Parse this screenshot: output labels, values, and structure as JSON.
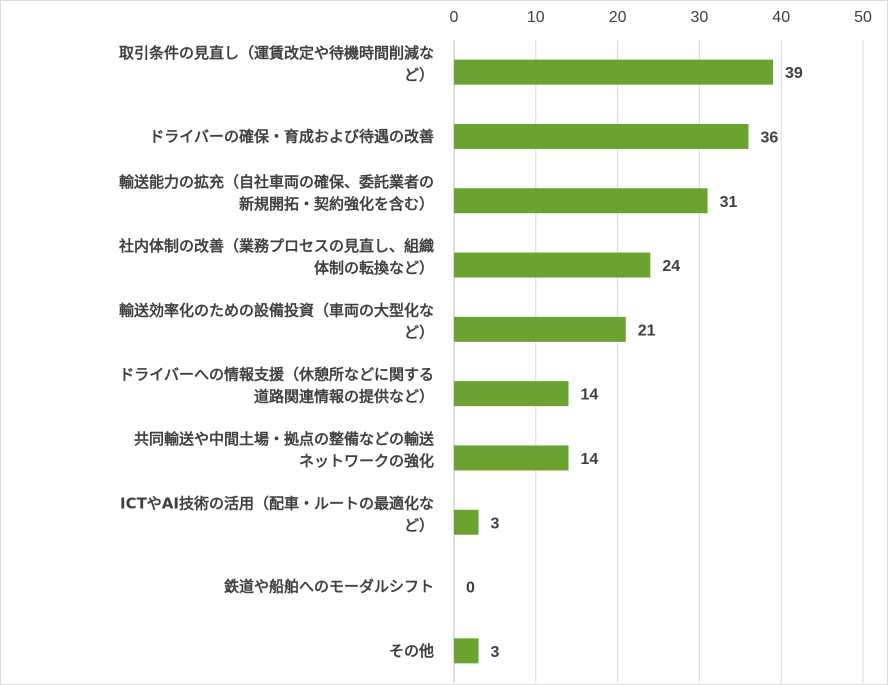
{
  "chart_data": {
    "type": "bar",
    "orientation": "horizontal",
    "title": "",
    "xlabel": "",
    "ylabel": "",
    "xlim": [
      0,
      50
    ],
    "x_ticks": [
      0,
      10,
      20,
      30,
      40,
      50
    ],
    "x_axis_position": "top",
    "grid": true,
    "legend": "none",
    "bar_color": "#6aa330",
    "categories": [
      [
        "取引条件の見直し（運賃改定や待機時間削減な",
        "ど）"
      ],
      [
        "ドライバーの確保・育成および待遇の改善"
      ],
      [
        "輸送能力の拡充（自社車両の確保、委託業者の",
        "新規開拓・契約強化を含む）"
      ],
      [
        "社内体制の改善（業務プロセスの見直し、組織",
        "体制の転換など）"
      ],
      [
        "輸送効率化のための設備投資（車両の大型化な",
        "ど）"
      ],
      [
        "ドライバーへの情報支援（休憩所などに関する",
        "道路関連情報の提供など）"
      ],
      [
        "共同輸送や中間土場・拠点の整備などの輸送",
        "ネットワークの強化"
      ],
      [
        "ICTやAI技術の活用（配車・ルートの最適化な",
        "ど）"
      ],
      [
        "鉄道や船舶へのモーダルシフト"
      ],
      [
        "その他"
      ]
    ],
    "values": [
      39,
      36,
      31,
      24,
      21,
      14,
      14,
      3,
      0,
      3
    ]
  }
}
